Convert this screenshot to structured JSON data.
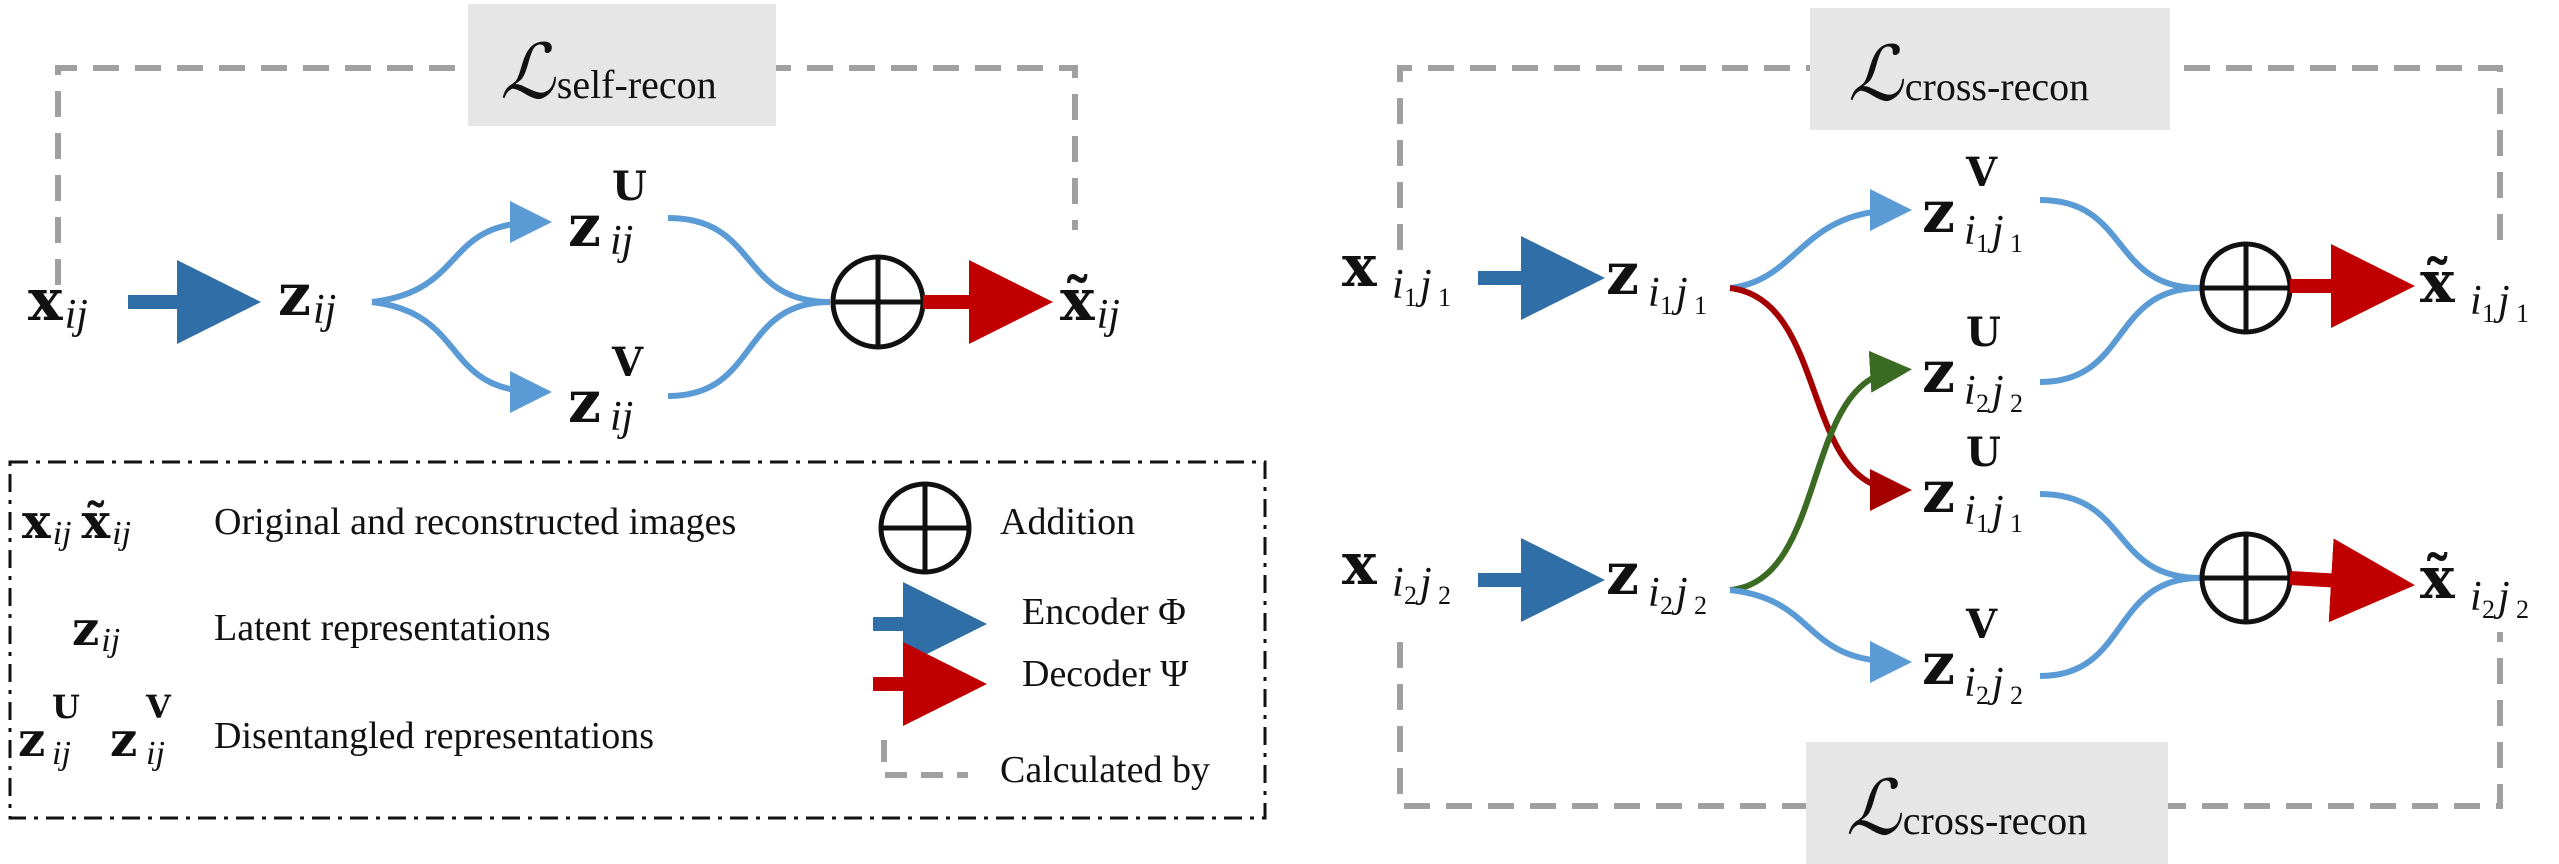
{
  "colors": {
    "encoder": "#2f6ea6",
    "decoder": "#c00000",
    "split_light": "#5b9bd5",
    "cross_swap_red": "#a40000",
    "cross_swap_green": "#3b6b22",
    "dashed": "#a0a0a0",
    "loss_box": "#e6e6e6"
  },
  "symbols": {
    "x": "x",
    "x_tilde": "x̃",
    "z": "z",
    "sup_U": "U",
    "sup_V": "V",
    "plus": "⊕",
    "script_L": "ℒ"
  },
  "self_recon": {
    "loss_label": "ℒ",
    "loss_sub": "self-recon",
    "input_sub": "ij",
    "latent_sub": "ij",
    "zu_sub": "ij",
    "zv_sub": "ij",
    "output_sub": "ij"
  },
  "cross_recon": {
    "loss_top_label": "ℒ",
    "loss_top_sub": "cross-recon",
    "loss_bottom_label": "ℒ",
    "loss_bottom_sub": "cross-recon",
    "i1": "i",
    "j1": "j",
    "n1": "1",
    "n2": "2"
  },
  "legend": {
    "images_label": "Original and reconstructed images",
    "latent_label": "Latent representations",
    "disentangled_label": "Disentangled representations",
    "addition_label": "Addition",
    "encoder_label": "Encoder Φ",
    "decoder_label": "Decoder Ψ",
    "calculated_label": "Calculated by",
    "sub_ij": "ij"
  }
}
